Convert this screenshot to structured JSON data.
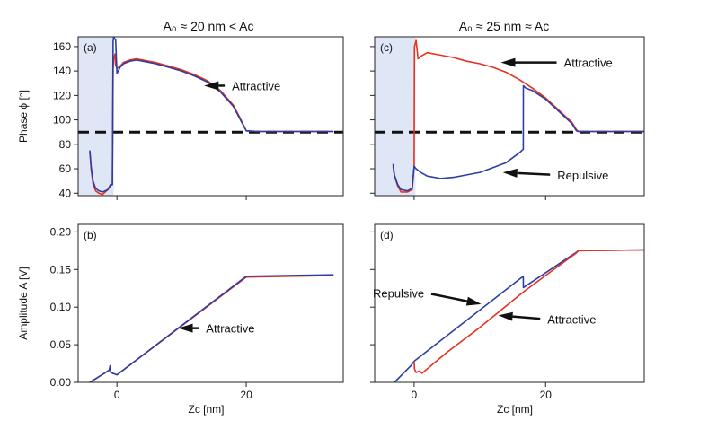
{
  "column_titles": {
    "left": "A₀ ≈ 20 nm < Ac",
    "right": "A₀ ≈ 25 nm ≈ Ac"
  },
  "chart_data": [
    {
      "id": "a",
      "type": "line",
      "panel_label": "(a)",
      "ylabel": "Phase ϕ [°]",
      "xlim": [
        -6,
        35
      ],
      "ylim": [
        38,
        168
      ],
      "yticks": [
        40,
        60,
        80,
        100,
        120,
        140,
        160
      ],
      "xticks": [
        0,
        20
      ],
      "xticklabels_shown": false,
      "grid": false,
      "shaded_x": [
        -6,
        -0.5
      ],
      "reference_line": {
        "y": 90,
        "style": "dashed"
      },
      "series": [
        {
          "color": "#e8311f",
          "x": [
            -4.2,
            -4.0,
            -3.7,
            -3.3,
            -2.8,
            -2.2,
            -1.8,
            -1.4,
            -1.0,
            -0.7,
            -0.6,
            -0.5,
            -0.3,
            -0.2,
            0.0,
            0.5,
            1,
            2,
            3,
            4,
            6,
            8,
            10,
            12,
            14,
            16,
            18,
            19,
            20,
            22,
            25,
            28,
            32,
            33.5
          ],
          "y": [
            74,
            60,
            48,
            42,
            40,
            39,
            41,
            43,
            46,
            47,
            141,
            150,
            154,
            145,
            142,
            144,
            147,
            149,
            150,
            149,
            147,
            144,
            141,
            137,
            132,
            124,
            112,
            102,
            91,
            90.5,
            90.5,
            90.5,
            90.5,
            90.5
          ]
        },
        {
          "color": "#2a3fa6",
          "x": [
            -4.2,
            -4.0,
            -3.7,
            -3.3,
            -2.8,
            -2.2,
            -1.8,
            -1.4,
            -1.0,
            -0.7,
            -0.6,
            -0.5,
            -0.3,
            -0.2,
            0.0,
            0.5,
            1,
            2,
            3,
            4,
            6,
            8,
            10,
            12,
            14,
            16,
            18,
            19,
            20,
            22,
            25,
            28,
            32,
            33.5
          ],
          "y": [
            75,
            62,
            50,
            44,
            42,
            41,
            42,
            43,
            47,
            47,
            164,
            168,
            166,
            166,
            138,
            143,
            146,
            148,
            149,
            148,
            146,
            143,
            140,
            136,
            131,
            123,
            111,
            101,
            91,
            90.5,
            90.5,
            90.5,
            90.5,
            90.5
          ]
        }
      ],
      "annotations": [
        {
          "text": "Attractive",
          "x": 17.5,
          "y": 128,
          "arrow_to": [
            13.5,
            128
          ]
        }
      ]
    },
    {
      "id": "b",
      "type": "line",
      "panel_label": "(b)",
      "xlabel": "Zc [nm]",
      "ylabel": "Amplitude A [V]",
      "xlim": [
        -6,
        35
      ],
      "ylim": [
        0,
        0.21
      ],
      "yticks": [
        0.0,
        0.05,
        0.1,
        0.15,
        0.2
      ],
      "yticklabels": [
        "0.00",
        "0.05",
        "0.10",
        "0.15",
        "0.20"
      ],
      "xticks": [
        0,
        20
      ],
      "xticklabels": [
        "0",
        "20"
      ],
      "grid": false,
      "series": [
        {
          "color": "#e8311f",
          "x": [
            -4.2,
            -1.2,
            -1.05,
            -0.95,
            0.0,
            20.0,
            33.5
          ],
          "y": [
            0.0,
            0.016,
            0.022,
            0.013,
            0.01,
            0.14,
            0.142
          ]
        },
        {
          "color": "#2a3fa6",
          "x": [
            -4.2,
            -1.2,
            -1.05,
            -0.95,
            0.0,
            20.0,
            33.5
          ],
          "y": [
            0.0,
            0.016,
            0.022,
            0.013,
            0.01,
            0.141,
            0.143
          ]
        }
      ],
      "annotations": [
        {
          "text": "Attractive",
          "x": 13.5,
          "y": 0.072,
          "arrow_to": [
            9.5,
            0.072
          ]
        }
      ]
    },
    {
      "id": "c",
      "type": "line",
      "panel_label": "(c)",
      "xlim": [
        -6,
        35
      ],
      "ylim": [
        38,
        168
      ],
      "yticks": [
        40,
        60,
        80,
        100,
        120,
        140,
        160
      ],
      "yticklabels_shown": false,
      "xticks": [
        0,
        20
      ],
      "xticklabels_shown": false,
      "grid": false,
      "shaded_x": [
        -6,
        0.2
      ],
      "reference_line": {
        "y": 90,
        "style": "dashed"
      },
      "series": [
        {
          "color": "#e8311f",
          "x": [
            -3.2,
            -3.0,
            -2.5,
            -2.0,
            -1.0,
            -0.3,
            0.0,
            0.05,
            0.3,
            0.6,
            1.0,
            2,
            4,
            6,
            8,
            10,
            12,
            14,
            16,
            18,
            20,
            22,
            24,
            24.7,
            25,
            28,
            32,
            35
          ],
          "y": [
            62,
            54,
            46,
            41,
            41,
            43,
            61,
            160,
            165,
            150,
            152,
            155,
            153,
            151,
            148,
            146,
            143,
            139,
            133,
            126,
            118,
            108,
            98,
            92,
            90.5,
            90.5,
            90.5,
            90.5
          ]
        },
        {
          "color": "#2a3fa6",
          "x": [
            -3.2,
            -3.0,
            -2.5,
            -2.0,
            -1.0,
            -0.3,
            0.0,
            0.3,
            1,
            2,
            4,
            6,
            8,
            10,
            12,
            14,
            16,
            16.6,
            16.62,
            17,
            18,
            20,
            22,
            24,
            24.7,
            25,
            28,
            32,
            35
          ],
          "y": [
            64,
            55,
            47,
            43,
            42,
            44,
            62,
            60,
            57,
            54,
            52,
            53,
            55,
            57,
            61,
            65,
            73,
            76,
            128,
            126,
            124,
            117,
            107,
            97,
            91,
            90.5,
            90.5,
            90.5,
            90.5
          ]
        }
      ],
      "annotations": [
        {
          "text": "Attractive",
          "x": 22.5,
          "y": 147,
          "arrow_to": [
            13.2,
            147
          ]
        },
        {
          "text": "Repulsive",
          "x": 21.5,
          "y": 55,
          "arrow_to": [
            13.5,
            57
          ]
        }
      ]
    },
    {
      "id": "d",
      "type": "line",
      "panel_label": "(d)",
      "xlabel": "Zc [nm]",
      "xlim": [
        -6,
        35
      ],
      "ylim": [
        0,
        0.21
      ],
      "yticks": [
        0.0,
        0.05,
        0.1,
        0.15,
        0.2
      ],
      "yticklabels_shown": false,
      "xticks": [
        0,
        20
      ],
      "xticklabels": [
        "0",
        "20"
      ],
      "grid": false,
      "series": [
        {
          "color": "#2a3fa6",
          "x": [
            -3.0,
            -0.5,
            0.0,
            16.6,
            16.62,
            24.7,
            25,
            35
          ],
          "y": [
            0.0,
            0.022,
            0.028,
            0.141,
            0.126,
            0.173,
            0.175,
            0.176
          ]
        },
        {
          "color": "#e8311f",
          "x": [
            0.0,
            0.05,
            0.3,
            0.8,
            1.2,
            5,
            10,
            16.6,
            20,
            24.7,
            25,
            35
          ],
          "y": [
            0.028,
            0.018,
            0.013,
            0.015,
            0.012,
            0.04,
            0.073,
            0.12,
            0.142,
            0.172,
            0.175,
            0.176
          ]
        }
      ],
      "annotations": [
        {
          "text": "Repulsive",
          "x": 1.8,
          "y": 0.119,
          "arrow_to": [
            10.2,
            0.104
          ]
        },
        {
          "text": "Attractive",
          "x": 20.0,
          "y": 0.084,
          "arrow_to": [
            12.8,
            0.089
          ]
        }
      ]
    }
  ]
}
